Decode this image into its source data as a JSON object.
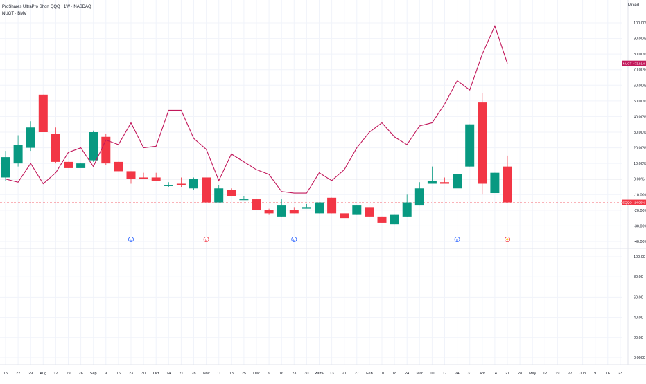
{
  "legend": {
    "title": "ProShares UltraPro Short QQQ · 1W · NASDAQ",
    "overlay": "NUGT · BMV"
  },
  "mode_label": "Mixed",
  "colors": {
    "up": "#089981",
    "down": "#f23645",
    "line": "#c2185b",
    "grid": "#f0f3fa",
    "axis_text": "#131722",
    "zero_line": "#b2b5be",
    "current_line": "#f23645",
    "event_blue": "#2962ff",
    "event_red": "#f23645"
  },
  "chart_data": [
    {
      "type": "candlestick",
      "title": "ProShares UltraPro Short QQQ",
      "unit": "percent change",
      "ylim": [
        -40,
        100
      ],
      "y_ticks": [
        "100.00%",
        "90.00%",
        "80.00%",
        "70.00%",
        "60.00%",
        "50.00%",
        "40.00%",
        "30.00%",
        "20.00%",
        "10.00%",
        "0.00%",
        "-10.00%",
        "-20.00%",
        "-30.00%",
        "-40.00%"
      ],
      "x_ticks": [
        "15",
        "22",
        "29",
        "Aug",
        "12",
        "19",
        "26",
        "Sep",
        "9",
        "16",
        "23",
        "30",
        "Oct",
        "14",
        "21",
        "28",
        "Nov",
        "11",
        "18",
        "25",
        "Dec",
        "9",
        "16",
        "23",
        "30",
        "2025",
        "13",
        "21",
        "27",
        "Feb",
        "10",
        "18",
        "24",
        "Mar",
        "10",
        "17",
        "24",
        "31",
        "Apr",
        "14",
        "21",
        "28",
        "May",
        "12",
        "19",
        "27",
        "Jun",
        "9",
        "16",
        "23"
      ],
      "candles": [
        [
          0,
          14,
          18,
          -1,
          1
        ],
        [
          0,
          22,
          28,
          8,
          10
        ],
        [
          0,
          33,
          37,
          18,
          20
        ],
        [
          1,
          54,
          54,
          30,
          30
        ],
        [
          1,
          29,
          33,
          10,
          11
        ],
        [
          1,
          11,
          11,
          7,
          7
        ],
        [
          0,
          10,
          10,
          8,
          7
        ],
        [
          0,
          30,
          31,
          11,
          12
        ],
        [
          1,
          27,
          29,
          9,
          10
        ],
        [
          1,
          11,
          11,
          5,
          5
        ],
        [
          1,
          5,
          5,
          -3,
          0
        ],
        [
          1,
          1,
          4,
          0,
          0
        ],
        [
          1,
          1,
          4,
          -1,
          -1
        ],
        [
          0,
          -4,
          -2,
          -5,
          -4
        ],
        [
          1,
          -3,
          1,
          -5,
          -4
        ],
        [
          0,
          0,
          1,
          -7,
          -6
        ],
        [
          1,
          1,
          1,
          -15,
          -15
        ],
        [
          0,
          -6,
          -4,
          -15,
          -15
        ],
        [
          1,
          -7,
          -6,
          -11,
          -11
        ],
        [
          0,
          -13,
          -11,
          -13,
          -13
        ],
        [
          1,
          -13,
          -13,
          -20,
          -20
        ],
        [
          1,
          -20,
          -19,
          -23,
          -22
        ],
        [
          0,
          -17,
          -13,
          -24,
          -24
        ],
        [
          1,
          -20,
          -18,
          -22,
          -22
        ],
        [
          0,
          -18,
          -16,
          -18,
          -19
        ],
        [
          0,
          -15,
          -15,
          -22,
          -22
        ],
        [
          1,
          -12,
          -12,
          -22,
          -22
        ],
        [
          1,
          -22,
          -22,
          -25,
          -25
        ],
        [
          0,
          -17,
          -17,
          -23,
          -23
        ],
        [
          1,
          -18,
          -18,
          -24,
          -24
        ],
        [
          1,
          -24,
          -24,
          -28,
          -28
        ],
        [
          0,
          -23,
          -23,
          -29,
          -29
        ],
        [
          0,
          -15,
          -10,
          -24,
          -24
        ],
        [
          0,
          -6,
          -2,
          -17,
          -17
        ],
        [
          0,
          -1,
          8,
          -3,
          -3
        ],
        [
          1,
          -2,
          1,
          -3,
          -3
        ],
        [
          0,
          3,
          3,
          -10,
          -6
        ],
        [
          0,
          35,
          35,
          8,
          8
        ],
        [
          1,
          49,
          55,
          -10,
          -3
        ],
        [
          0,
          4,
          4,
          -9,
          -9
        ],
        [
          1,
          8,
          15,
          -15,
          -15
        ]
      ],
      "candle_columns": [
        "down_flag",
        "open",
        "high",
        "low",
        "close"
      ],
      "current_value_label": "-14.96%",
      "current_symbol": "SQQQ"
    },
    {
      "type": "line",
      "series": [
        {
          "name": "NUGT",
          "values": [
            0,
            -2,
            10,
            -3,
            4,
            17,
            20,
            8,
            25,
            22,
            36,
            20,
            21,
            44,
            44,
            26,
            19,
            -1,
            16,
            11,
            6,
            3,
            -8,
            -9,
            -9,
            4,
            -1,
            6,
            20,
            30,
            36,
            27,
            22,
            34,
            36,
            48,
            63,
            57,
            80,
            98,
            74
          ],
          "current_value_label": "+73.91%"
        }
      ]
    },
    {
      "type": "bar",
      "subpanel": true,
      "ylim": [
        0,
        100
      ],
      "y_ticks": [
        "100.00",
        "80.00",
        "60.00",
        "40.00",
        "20.00",
        "0.0000"
      ]
    }
  ],
  "events": [
    {
      "index": 10,
      "symbol": "D",
      "kind": "dividend"
    },
    {
      "index": 16,
      "symbol": "D",
      "kind": "dividend"
    },
    {
      "index": 23,
      "symbol": "D",
      "kind": "dividend"
    },
    {
      "index": 36,
      "symbol": "D",
      "kind": "dividend"
    },
    {
      "index": 40,
      "symbol": "⚡",
      "kind": "split"
    }
  ]
}
